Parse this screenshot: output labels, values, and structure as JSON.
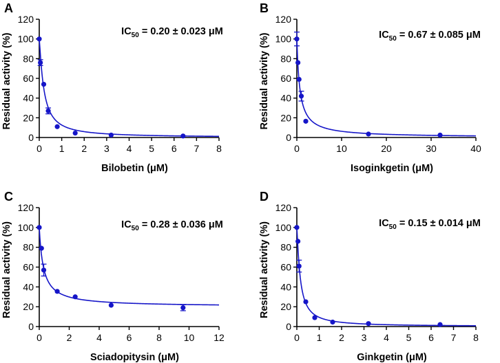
{
  "colors": {
    "series": "#1515c8",
    "axis": "#000000"
  },
  "chart_data": [
    {
      "type": "scatter",
      "panel_label": "A",
      "xlabel": "Bilobetin (μM)",
      "ylabel": "Residual activity (%)",
      "xlim": [
        0,
        8
      ],
      "ylim": [
        0,
        120
      ],
      "xticks": [
        "0",
        "1",
        "2",
        "3",
        "4",
        "5",
        "6",
        "7",
        "8"
      ],
      "yticks": [
        "0",
        "20",
        "40",
        "60",
        "80",
        "100",
        "120"
      ],
      "ic50": {
        "prefix": "IC",
        "sub": "50",
        "value": " = 0.20 ± 0.023 μM",
        "ic50_um": 0.2
      },
      "points": [
        {
          "x": 0,
          "y": 100,
          "err": 0
        },
        {
          "x": 0.05,
          "y": 76,
          "err": 3
        },
        {
          "x": 0.2,
          "y": 54,
          "err": 0
        },
        {
          "x": 0.4,
          "y": 27,
          "err": 3
        },
        {
          "x": 0.8,
          "y": 11,
          "err": 0
        },
        {
          "x": 1.6,
          "y": 4.5,
          "err": 0
        },
        {
          "x": 3.2,
          "y": 2.5,
          "err": 0
        },
        {
          "x": 6.4,
          "y": 1.5,
          "err": 0
        }
      ],
      "fit": {
        "top": 100,
        "bottom": 0,
        "ic50": 0.2,
        "hill": 1.2
      }
    },
    {
      "type": "scatter",
      "panel_label": "B",
      "xlabel": "Isoginkgetin (μM)",
      "ylabel": "Residual activity (%)",
      "xlim": [
        0,
        40
      ],
      "ylim": [
        0,
        120
      ],
      "xticks": [
        "0",
        "10",
        "20",
        "30",
        "40"
      ],
      "yticks": [
        "0",
        "20",
        "40",
        "60",
        "80",
        "100",
        "120"
      ],
      "ic50": {
        "prefix": "IC",
        "sub": "50",
        "value": " = 0.67 ± 0.085 μM",
        "ic50_um": 0.67
      },
      "points": [
        {
          "x": 0,
          "y": 100,
          "err": 7
        },
        {
          "x": 0.25,
          "y": 76,
          "err": 0
        },
        {
          "x": 0.5,
          "y": 59,
          "err": 0
        },
        {
          "x": 1.0,
          "y": 42,
          "err": 5
        },
        {
          "x": 2.0,
          "y": 16.5,
          "err": 0
        },
        {
          "x": 16,
          "y": 3.5,
          "err": 0
        },
        {
          "x": 32,
          "y": 2.5,
          "err": 0
        }
      ],
      "fit": {
        "top": 100,
        "bottom": 0,
        "ic50": 0.67,
        "hill": 1.0
      }
    },
    {
      "type": "scatter",
      "panel_label": "C",
      "xlabel": "Sciadopitysin (μM)",
      "ylabel": "Residual activity (%)",
      "xlim": [
        0,
        12
      ],
      "ylim": [
        0,
        120
      ],
      "xticks": [
        "0",
        "2",
        "4",
        "6",
        "8",
        "10",
        "12"
      ],
      "yticks": [
        "0",
        "20",
        "40",
        "60",
        "80",
        "100",
        "120"
      ],
      "ic50": {
        "prefix": "IC",
        "sub": "50",
        "value": " = 0.28 ± 0.036 μM",
        "ic50_um": 0.28
      },
      "points": [
        {
          "x": 0,
          "y": 100,
          "err": 0
        },
        {
          "x": 0.15,
          "y": 79,
          "err": 0
        },
        {
          "x": 0.3,
          "y": 57,
          "err": 6
        },
        {
          "x": 1.2,
          "y": 35.5,
          "err": 0
        },
        {
          "x": 2.4,
          "y": 30,
          "err": 0
        },
        {
          "x": 4.8,
          "y": 21.5,
          "err": 0
        },
        {
          "x": 9.6,
          "y": 19,
          "err": 3
        }
      ],
      "fit": {
        "top": 100,
        "bottom": 20,
        "ic50": 0.28,
        "hill": 1.0
      }
    },
    {
      "type": "scatter",
      "panel_label": "D",
      "xlabel": "Ginkgetin  (μM)",
      "ylabel": "Residual activity (%)",
      "xlim": [
        0,
        8
      ],
      "ylim": [
        0,
        120
      ],
      "xticks": [
        "0",
        "1",
        "2",
        "3",
        "4",
        "5",
        "6",
        "7",
        "8"
      ],
      "yticks": [
        "0",
        "20",
        "40",
        "60",
        "80",
        "100",
        "120"
      ],
      "ic50": {
        "prefix": "IC",
        "sub": "50",
        "value": " = 0.15 ± 0.014 μM",
        "ic50_um": 0.15
      },
      "points": [
        {
          "x": 0,
          "y": 100,
          "err": 0
        },
        {
          "x": 0.05,
          "y": 86,
          "err": 0
        },
        {
          "x": 0.1,
          "y": 61,
          "err": 6
        },
        {
          "x": 0.4,
          "y": 25,
          "err": 0
        },
        {
          "x": 0.8,
          "y": 9,
          "err": 0
        },
        {
          "x": 1.6,
          "y": 4.5,
          "err": 0
        },
        {
          "x": 3.2,
          "y": 3,
          "err": 0
        },
        {
          "x": 6.4,
          "y": 2,
          "err": 0
        }
      ],
      "fit": {
        "top": 100,
        "bottom": 0,
        "ic50": 0.15,
        "hill": 1.2
      }
    }
  ]
}
